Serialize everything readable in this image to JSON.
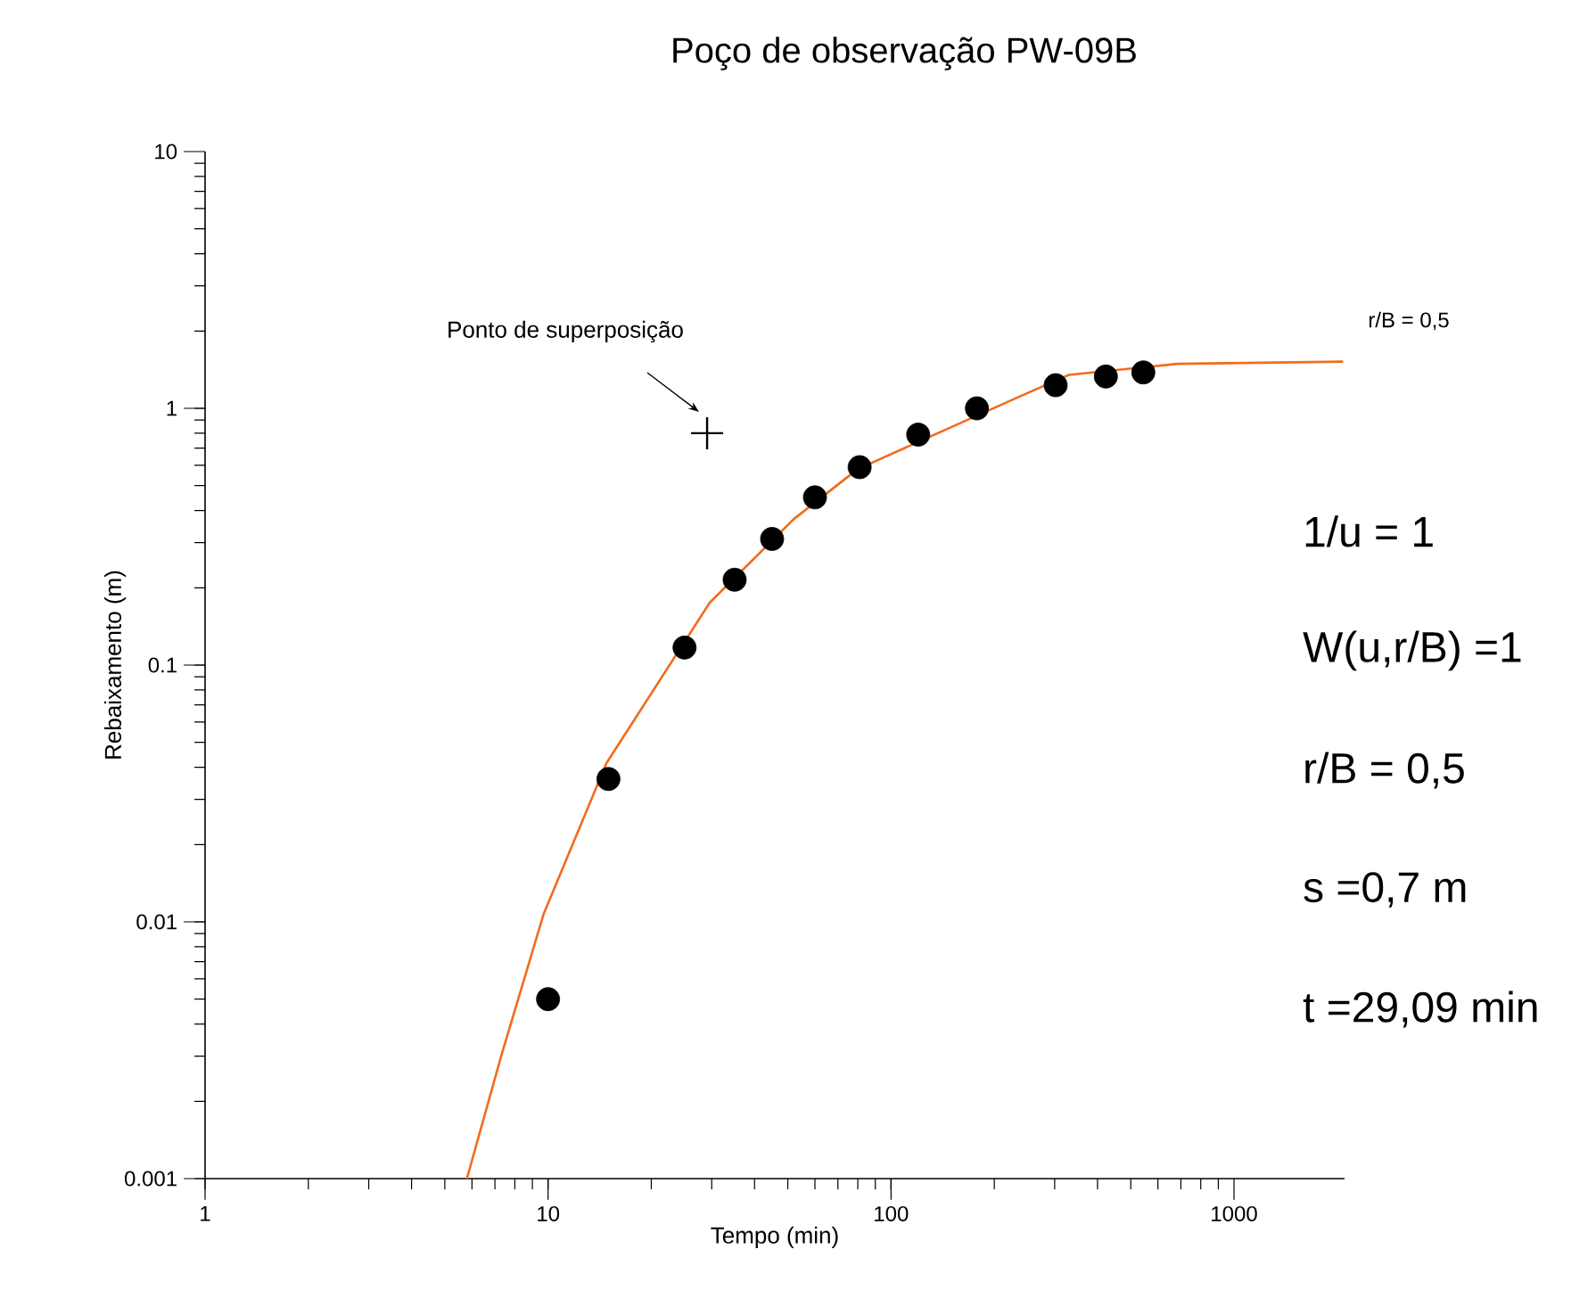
{
  "chart_data": {
    "type": "scatter",
    "title": "Poço de observação PW-09B",
    "xlabel": "Tempo (min)",
    "ylabel": "Rebaixamento (m)",
    "log": "xy",
    "grid": false,
    "xlim": [
      1,
      2100
    ],
    "ylim": [
      0.001,
      10
    ],
    "xticks": [
      1,
      10,
      100,
      1000
    ],
    "yticks": [
      0.001,
      0.01,
      0.1,
      1,
      10
    ],
    "series": [
      {
        "type": "line",
        "color": "#f26b1d",
        "marker": "none",
        "line_style": "solid",
        "x": [
          5.8,
          7.3,
          9.7,
          14.8,
          29.6,
          52,
          80,
          240,
          330,
          683,
          2080
        ],
        "values": [
          0.001,
          0.003,
          0.0107,
          0.0415,
          0.175,
          0.37,
          0.58,
          1.12,
          1.35,
          1.49,
          1.52
        ]
      },
      {
        "color": "#000000",
        "marker": "circle",
        "x": [
          10,
          15,
          25,
          35,
          45,
          60,
          81,
          120,
          178,
          302,
          423,
          544
        ],
        "values": [
          0.005,
          0.036,
          0.117,
          0.215,
          0.31,
          0.45,
          0.59,
          0.79,
          1.0,
          1.23,
          1.33,
          1.38
        ]
      },
      {
        "color": "#000000",
        "marker": "cross",
        "x": [
          29.09
        ],
        "values": [
          0.8
        ]
      }
    ],
    "annotations": [
      "Ponto de superposição",
      "r/B = 0,5",
      "1/u = 1",
      "W(u,r/B) =1",
      "r/B = 0,5",
      "s =0,7 m",
      "t =29,09 min"
    ]
  }
}
